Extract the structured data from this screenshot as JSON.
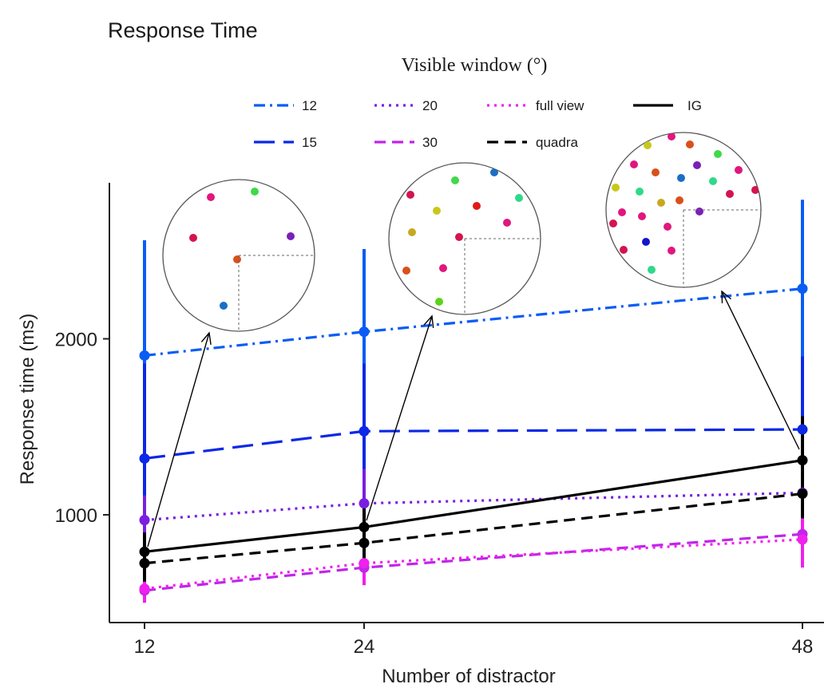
{
  "chart_data": {
    "type": "line",
    "title": "Response Time",
    "legend_title": "Visible window (°)",
    "legend_position": "top",
    "xlabel": "Number of distractor",
    "ylabel": "Response time (ms)",
    "x": [
      12,
      24,
      48
    ],
    "x_tick_labels": [
      "12",
      "24",
      "48"
    ],
    "y_ticks": [
      1000,
      2000
    ],
    "y_tick_labels": [
      "1000",
      "2000"
    ],
    "ylim": [
      370,
      2960
    ],
    "grid": false,
    "series": [
      {
        "name": "12",
        "color": "#0a5cf5",
        "dash": "dashdot",
        "values": [
          1905,
          2040,
          2285
        ],
        "error": [
          [
            1250,
            2560
          ],
          [
            1300,
            2510
          ],
          [
            1460,
            2790
          ]
        ]
      },
      {
        "name": "15",
        "color": "#0a28e6",
        "dash": "longdash",
        "values": [
          1320,
          1475,
          1485
        ],
        "error": [
          [
            800,
            1860
          ],
          [
            980,
            1860
          ],
          [
            1080,
            1900
          ]
        ]
      },
      {
        "name": "20",
        "color": "#7a1fe0",
        "dash": "dotted",
        "values": [
          970,
          1065,
          1125
        ],
        "error": [
          [
            830,
            1110
          ],
          [
            900,
            1260
          ],
          [
            1000,
            1290
          ]
        ]
      },
      {
        "name": "30",
        "color": "#c026e8",
        "dash": "dashed",
        "values": [
          570,
          700,
          890
        ],
        "error": [
          [
            510,
            640
          ],
          [
            620,
            790
          ],
          [
            780,
            1010
          ]
        ]
      },
      {
        "name": "full view",
        "color": "#f020ee",
        "dash": "dotted",
        "values": [
          580,
          725,
          860
        ],
        "error": [
          [
            500,
            660
          ],
          [
            600,
            850
          ],
          [
            700,
            1020
          ]
        ]
      },
      {
        "name": "quadra",
        "color": "#000000",
        "dash": "dashed",
        "values": [
          725,
          840,
          1120
        ],
        "error": [
          [
            620,
            830
          ],
          [
            740,
            940
          ],
          [
            980,
            1260
          ]
        ]
      },
      {
        "name": "IG",
        "color": "#000000",
        "dash": "solid",
        "values": [
          790,
          930,
          1310
        ],
        "error": [
          [
            680,
            900
          ],
          [
            820,
            1040
          ],
          [
            1100,
            1560
          ]
        ]
      }
    ],
    "annotations": {
      "insets": [
        {
          "name": "inset-12"
        },
        {
          "name": "inset-24"
        },
        {
          "name": "inset-48"
        }
      ]
    }
  }
}
